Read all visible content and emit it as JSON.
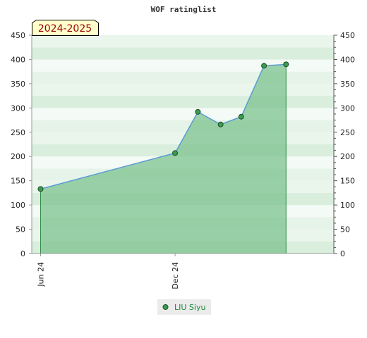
{
  "chart_data": {
    "type": "area",
    "title": "WOF ratinglist",
    "season_label": "2024-2025",
    "xlabel": "",
    "ylabel": "",
    "ylim": [
      0,
      450
    ],
    "y_ticks": [
      0,
      50,
      100,
      150,
      200,
      250,
      300,
      350,
      400,
      450
    ],
    "x_ticks": [
      {
        "label": "Jun 24",
        "date": "2024-06-01"
      },
      {
        "label": "Dec 24",
        "date": "2024-12-01"
      }
    ],
    "xlim": [
      "2024-05-20",
      "2025-07-05"
    ],
    "grid": true,
    "legend_position": "bottom-center",
    "series": [
      {
        "name": "LIU Siyu",
        "color": "#5b9bd5",
        "fill": "#78c08a",
        "marker_color": "#3a9d4f",
        "points": [
          {
            "date": "2024-06-01",
            "value": 133
          },
          {
            "date": "2024-12-01",
            "value": 207
          },
          {
            "date": "2025-01-01",
            "value": 292
          },
          {
            "date": "2025-02-01",
            "value": 266
          },
          {
            "date": "2025-03-01",
            "value": 282
          },
          {
            "date": "2025-04-01",
            "value": 387
          },
          {
            "date": "2025-05-01",
            "value": 390
          }
        ]
      }
    ]
  }
}
